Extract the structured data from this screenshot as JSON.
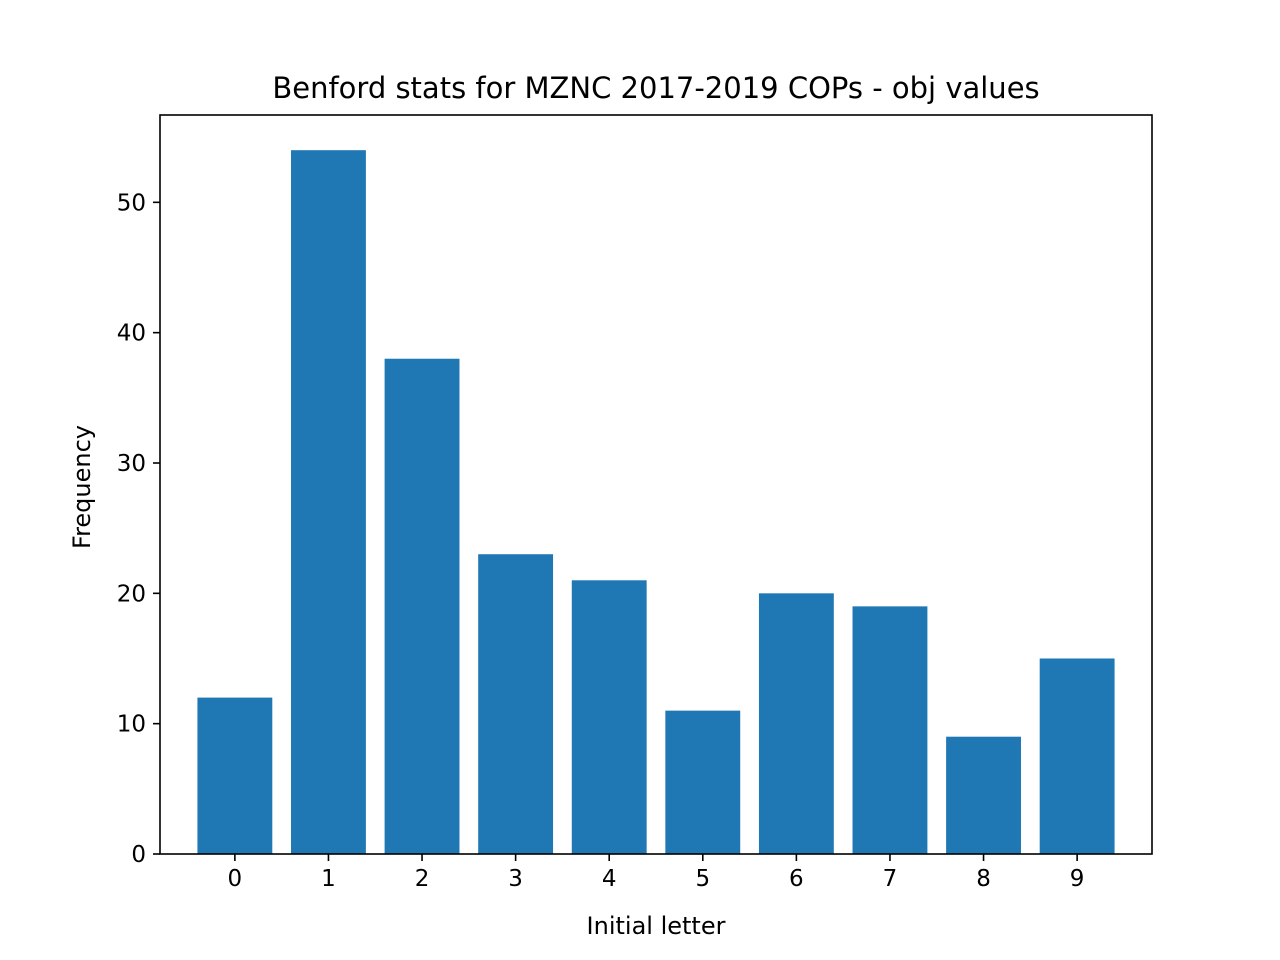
{
  "chart_data": {
    "type": "bar",
    "title": "Benford stats for MZNC 2017-2019 COPs - obj values",
    "xlabel": "Initial letter",
    "ylabel": "Frequency",
    "categories": [
      "0",
      "1",
      "2",
      "3",
      "4",
      "5",
      "6",
      "7",
      "8",
      "9"
    ],
    "values": [
      12,
      54,
      38,
      23,
      21,
      11,
      20,
      19,
      9,
      15
    ],
    "ylim": [
      0,
      56.7
    ],
    "yticks": [
      0,
      10,
      20,
      30,
      40,
      50
    ],
    "grid": false,
    "legend": "none",
    "colors": {
      "bar": "#1f77b4",
      "axes": "#000000",
      "background": "#ffffff"
    }
  }
}
